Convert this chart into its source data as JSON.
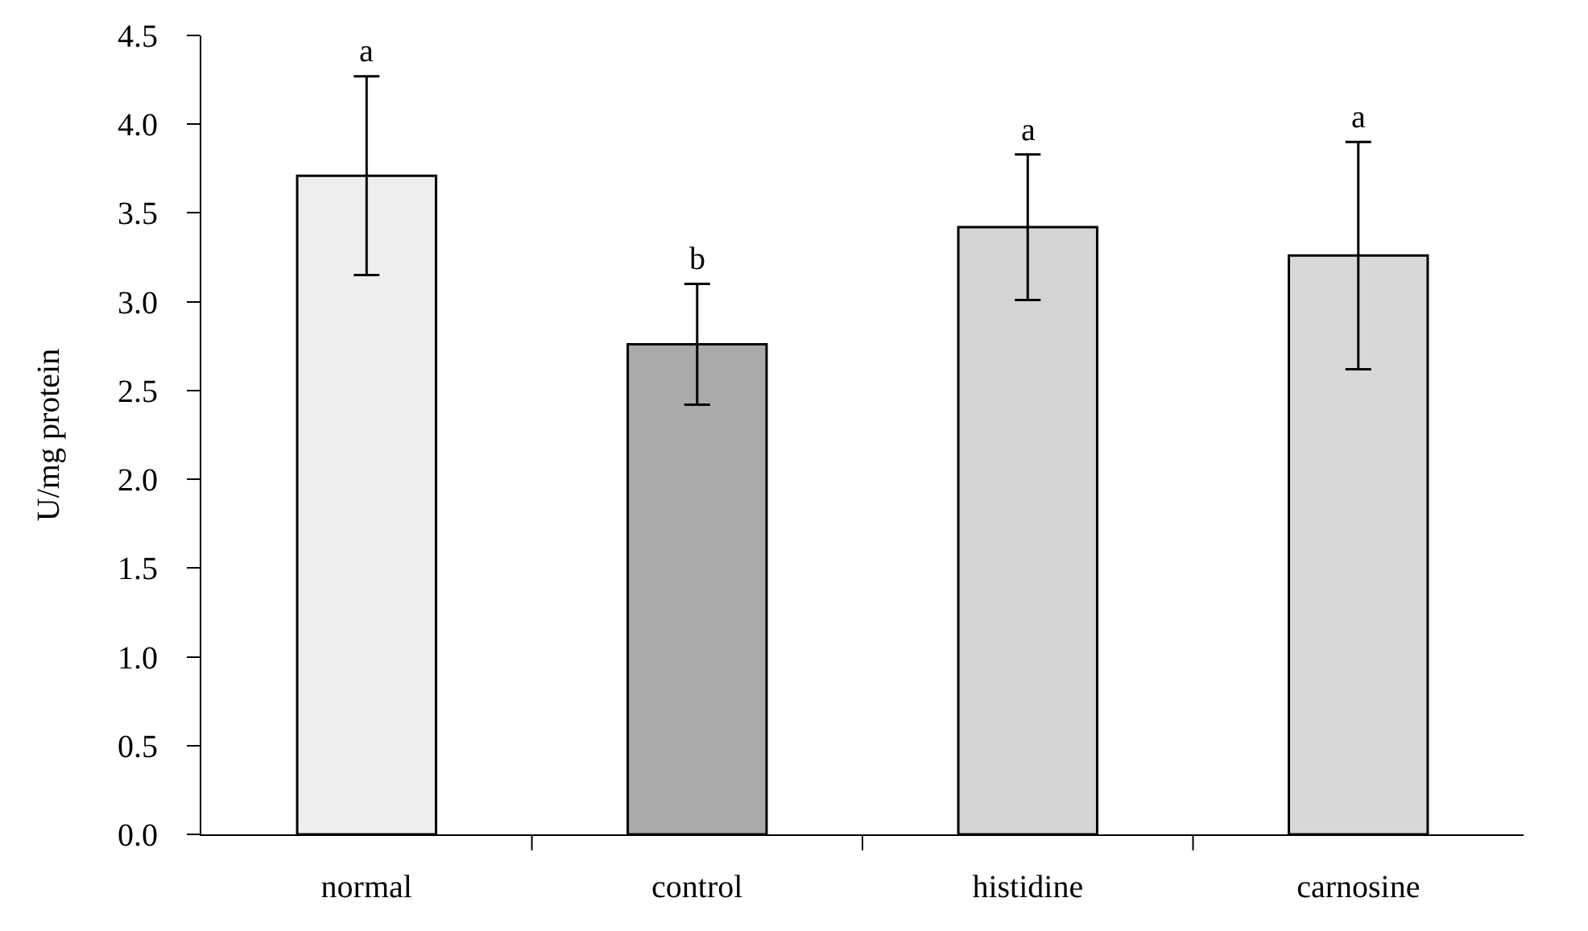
{
  "chart_data": {
    "type": "bar",
    "ylabel": "U/mg protein",
    "categories": [
      "normal",
      "control",
      "histidine",
      "carnosine"
    ],
    "values": [
      3.71,
      2.76,
      3.42,
      3.26
    ],
    "errors": [
      0.56,
      0.34,
      0.41,
      0.64
    ],
    "colors": [
      "#eeeeee",
      "#aaaaaa",
      "#d4d4d4",
      "#d8d8d8"
    ],
    "ylim": [
      0,
      4.5
    ],
    "yticks": [
      {
        "value": 0,
        "label": "0.0"
      },
      {
        "value": 0.5,
        "label": "0.5"
      },
      {
        "value": 1,
        "label": "1.0"
      },
      {
        "value": 1.5,
        "label": "1.5"
      },
      {
        "value": 2,
        "label": "2.0"
      },
      {
        "value": 2.5,
        "label": "2.5"
      },
      {
        "value": 3,
        "label": "3.0"
      },
      {
        "value": 3.5,
        "label": "3.5"
      },
      {
        "value": 4,
        "label": "4.0"
      },
      {
        "value": 4.5,
        "label": "4.5"
      }
    ],
    "annotations": [
      {
        "text": "a",
        "x": "normal",
        "y": 4.27
      },
      {
        "text": "b",
        "x": "control",
        "y": 3.1
      },
      {
        "text": "a",
        "x": "histidine",
        "y": 3.83
      },
      {
        "text": "a",
        "x": "carnosine",
        "y": 3.9
      }
    ],
    "grid": false
  }
}
